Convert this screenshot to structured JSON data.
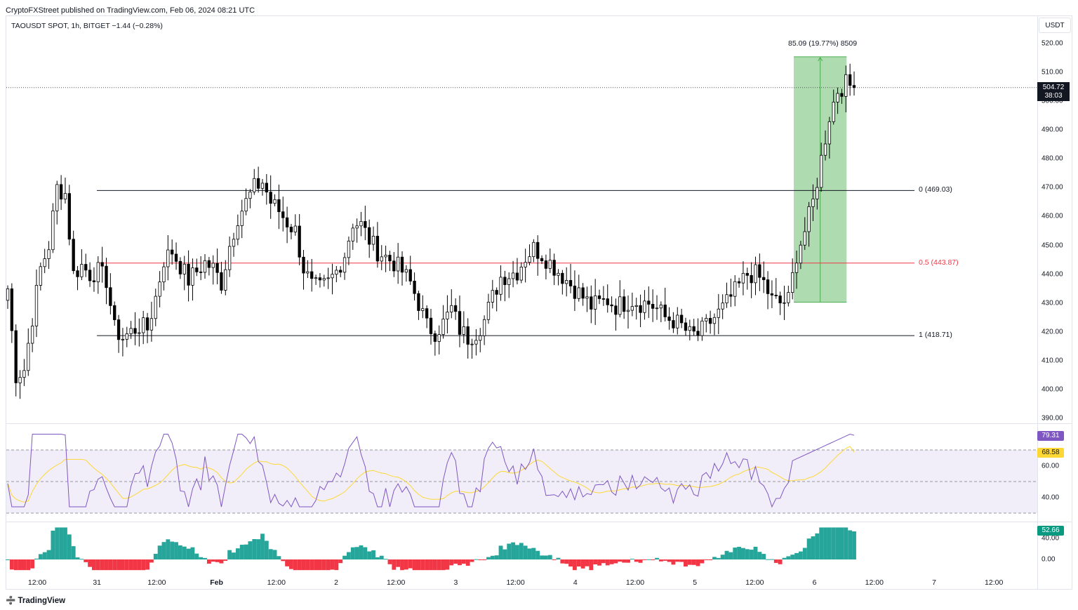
{
  "header": {
    "publisher": "CryptoFXStreet published on TradingView.com, Feb 06, 2024 08:21 UTC",
    "symbol_legend": "TAOUSDT SPOT, 1h, BITGET  −1.44 (−0.28%)"
  },
  "axis": {
    "currency": "USDT",
    "price_ticks": [
      "520.00",
      "510.00",
      "500.00",
      "490.00",
      "480.00",
      "470.00",
      "460.00",
      "450.00",
      "440.00",
      "430.00",
      "420.00",
      "410.00",
      "400.00",
      "390.00"
    ],
    "rsi_ticks": [
      "60.00",
      "40.00"
    ],
    "macd_ticks": [
      "40.00",
      "0.00"
    ],
    "time_ticks": [
      {
        "label": "12:00",
        "bold": false
      },
      {
        "label": "31",
        "bold": false
      },
      {
        "label": "12:00",
        "bold": false
      },
      {
        "label": "Feb",
        "bold": true
      },
      {
        "label": "12:00",
        "bold": false
      },
      {
        "label": "2",
        "bold": false
      },
      {
        "label": "12:00",
        "bold": false
      },
      {
        "label": "3",
        "bold": false
      },
      {
        "label": "12:00",
        "bold": false
      },
      {
        "label": "4",
        "bold": false
      },
      {
        "label": "12:00",
        "bold": false
      },
      {
        "label": "5",
        "bold": false
      },
      {
        "label": "12:00",
        "bold": false
      },
      {
        "label": "6",
        "bold": false
      },
      {
        "label": "12:00",
        "bold": false
      },
      {
        "label": "7",
        "bold": false
      },
      {
        "label": "12:00",
        "bold": false
      }
    ]
  },
  "last_price": {
    "value": "504.72",
    "countdown": "38:03"
  },
  "indicators": {
    "rsi_value": "79.31",
    "rsi_color": "#7e57c2",
    "rsi_ma_value": "68.58",
    "rsi_ma_color": "#fdd835",
    "macd_value": "52.66",
    "macd_color": "#089981"
  },
  "fib_levels": [
    {
      "label": "0 (469.03)",
      "price": 469.03,
      "color": "#131722"
    },
    {
      "label": "0.5 (443.87)",
      "price": 443.87,
      "color": "#f23645"
    },
    {
      "label": "1 (418.71)",
      "price": 418.71,
      "color": "#131722"
    }
  ],
  "measure": {
    "label": "85.09 (19.77%) 8509",
    "from_price": 430.3,
    "to_price": 515.4,
    "color": "#4caf50"
  },
  "colors": {
    "up": "#ffffff",
    "down": "#000000",
    "hist_pos": "#26a69a",
    "hist_neg": "#f23645"
  },
  "footer": {
    "brand": "TradingView"
  },
  "chart_data": {
    "type": "candlestick",
    "title": "TAOUSDT SPOT, 1h, BITGET",
    "ylabel": "USDT",
    "ylim": [
      390,
      520
    ],
    "close_path": [
      [
        0,
        435
      ],
      [
        2,
        405
      ],
      [
        4,
        407
      ],
      [
        6,
        425
      ],
      [
        8,
        442
      ],
      [
        10,
        450
      ],
      [
        12,
        470
      ],
      [
        14,
        468
      ],
      [
        16,
        440
      ],
      [
        18,
        443
      ],
      [
        20,
        440
      ],
      [
        22,
        441
      ],
      [
        24,
        438
      ],
      [
        26,
        421
      ],
      [
        28,
        418
      ],
      [
        30,
        420
      ],
      [
        32,
        422
      ],
      [
        34,
        421
      ],
      [
        36,
        432
      ],
      [
        38,
        445
      ],
      [
        40,
        448
      ],
      [
        42,
        443
      ],
      [
        44,
        438
      ],
      [
        46,
        441
      ],
      [
        48,
        444
      ],
      [
        50,
        442
      ],
      [
        52,
        437
      ],
      [
        54,
        450
      ],
      [
        56,
        460
      ],
      [
        58,
        465
      ],
      [
        60,
        470
      ],
      [
        62,
        472
      ],
      [
        64,
        465
      ],
      [
        66,
        462
      ],
      [
        68,
        458
      ],
      [
        70,
        455
      ],
      [
        72,
        442
      ],
      [
        74,
        436
      ],
      [
        76,
        435
      ],
      [
        78,
        437
      ],
      [
        80,
        441
      ],
      [
        82,
        447
      ],
      [
        84,
        458
      ],
      [
        86,
        457
      ],
      [
        88,
        452
      ],
      [
        90,
        448
      ],
      [
        92,
        446
      ],
      [
        94,
        444
      ],
      [
        96,
        441
      ],
      [
        98,
        437
      ],
      [
        100,
        430
      ],
      [
        102,
        422
      ],
      [
        104,
        420
      ],
      [
        106,
        423
      ],
      [
        108,
        428
      ],
      [
        110,
        421
      ],
      [
        112,
        418
      ],
      [
        114,
        420
      ],
      [
        116,
        424
      ],
      [
        118,
        432
      ],
      [
        120,
        439
      ],
      [
        122,
        440
      ],
      [
        124,
        441
      ],
      [
        126,
        446
      ],
      [
        128,
        449
      ],
      [
        130,
        447
      ],
      [
        132,
        444
      ],
      [
        134,
        441
      ],
      [
        136,
        438
      ],
      [
        138,
        435
      ],
      [
        140,
        432
      ],
      [
        142,
        429
      ],
      [
        144,
        430
      ],
      [
        146,
        431
      ],
      [
        148,
        429
      ],
      [
        150,
        430
      ],
      [
        152,
        431
      ],
      [
        154,
        430
      ],
      [
        156,
        430
      ],
      [
        158,
        428
      ],
      [
        160,
        425
      ],
      [
        162,
        424
      ],
      [
        164,
        422
      ],
      [
        166,
        419
      ],
      [
        168,
        419
      ],
      [
        170,
        422
      ],
      [
        172,
        425
      ],
      [
        174,
        428
      ],
      [
        176,
        432
      ],
      [
        178,
        436
      ],
      [
        180,
        440
      ],
      [
        182,
        440
      ],
      [
        184,
        437
      ],
      [
        186,
        431
      ],
      [
        188,
        430
      ],
      [
        190,
        431
      ],
      [
        192,
        447
      ],
      [
        194,
        455
      ],
      [
        196,
        465
      ],
      [
        198,
        480
      ],
      [
        200,
        495
      ],
      [
        202,
        504
      ],
      [
        204,
        506
      ],
      [
        206,
        504.72
      ]
    ],
    "rsi_ylim": [
      30,
      80
    ],
    "rsi_bands": [
      30,
      50,
      70
    ],
    "macd_hist_range": [
      -20,
      52.66
    ]
  }
}
